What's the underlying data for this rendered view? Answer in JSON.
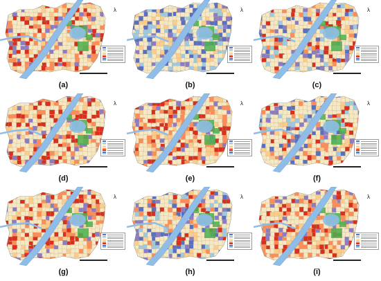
{
  "panels": [
    {
      "label": "(a)",
      "scheme": "orange-red"
    },
    {
      "label": "(b)",
      "scheme": "blue"
    },
    {
      "label": "(c)",
      "scheme": "mixed"
    },
    {
      "label": "(d)",
      "scheme": "orange-red"
    },
    {
      "label": "(e)",
      "scheme": "orange-red"
    },
    {
      "label": "(f)",
      "scheme": "mixed"
    },
    {
      "label": "(g)",
      "scheme": "orange-red"
    },
    {
      "label": "(h)",
      "scheme": "mixed"
    },
    {
      "label": "(i)",
      "scheme": "orange-red"
    }
  ],
  "north_arrow": "λ",
  "colors": {
    "water": "#8fbde8",
    "green_space": "#4caf50",
    "background": "#f3ecd2",
    "red": "#d7301f",
    "orange": "#fc8d59",
    "light_orange": "#fdcc8a",
    "cream": "#f6e8c3",
    "light_blue": "#9ecae1",
    "blue": "#5a6fc0",
    "purple": "#8e7cc3"
  }
}
